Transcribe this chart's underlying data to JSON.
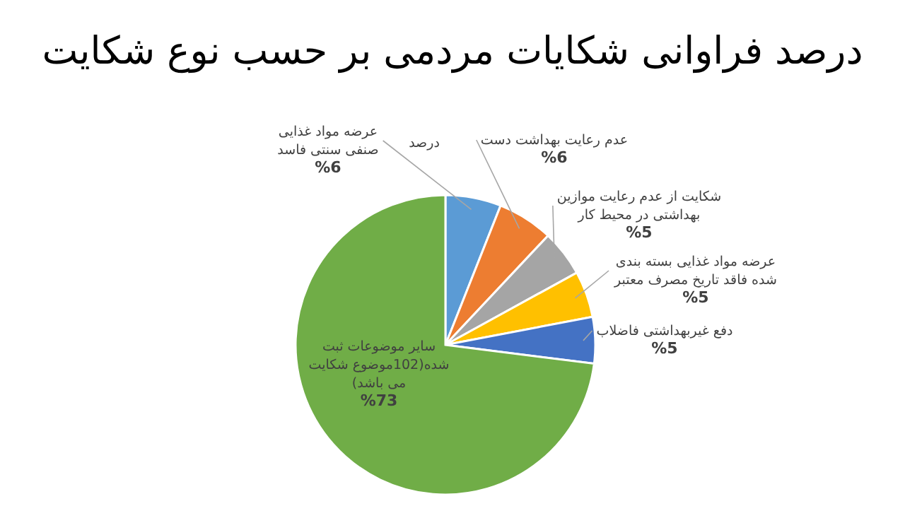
{
  "chart_data": {
    "type": "pie",
    "title": "درصد فراوانی شکایات مردمی بر حسب نوع شکایت",
    "legend_title": "درصد",
    "categories": [
      "عرضه مواد غذایی\nصنفی سنتی فاسد",
      "عدم رعایت بهداشت دست",
      "شکایت از عدم رعایت موازین\nبهداشتی در محیط کار",
      "عرضه مواد غذایی بسته بندی\nشده فاقد تاریخ مصرف معتبر",
      "دفع غیربهداشتی فاضلاب",
      "سایر موضوعات ثبت\nشده(102موضوع شکایت\nمی باشد)"
    ],
    "values": [
      6,
      6,
      5,
      5,
      5,
      73
    ],
    "value_labels": [
      "%6",
      "%6",
      "%5",
      "%5",
      "%5",
      "%73"
    ],
    "colors": [
      "#5b9bd5",
      "#ed7d31",
      "#a5a5a5",
      "#ffc000",
      "#4472c4",
      "#70ad47"
    ]
  }
}
